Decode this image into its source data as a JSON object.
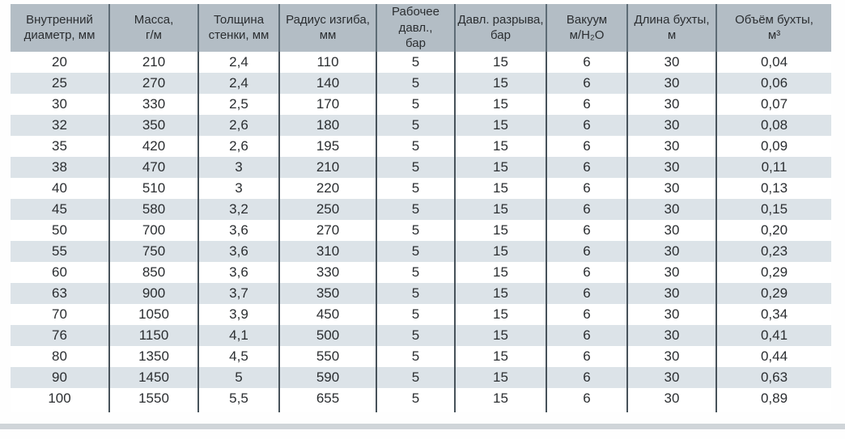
{
  "table_title": "pipe-coil-specifications",
  "chart_data": {
    "type": "table",
    "columns": [
      "Внутренний\nдиаметр, мм",
      "Масса,\nг/м",
      "Толщина\nстенки, мм",
      "Радиус изгиба,\nмм",
      "Рабочее давл.,\nбар",
      "Давл. разрыва,\nбар",
      "Вакуум\nм/H₂O",
      "Длина бухты,\nм",
      "Объём бухты,\nм³"
    ],
    "rows": [
      [
        "20",
        "210",
        "2,4",
        "110",
        "5",
        "15",
        "6",
        "30",
        "0,04"
      ],
      [
        "25",
        "270",
        "2,4",
        "140",
        "5",
        "15",
        "6",
        "30",
        "0,06"
      ],
      [
        "30",
        "330",
        "2,5",
        "170",
        "5",
        "15",
        "6",
        "30",
        "0,07"
      ],
      [
        "32",
        "350",
        "2,6",
        "180",
        "5",
        "15",
        "6",
        "30",
        "0,08"
      ],
      [
        "35",
        "420",
        "2,6",
        "195",
        "5",
        "15",
        "6",
        "30",
        "0,09"
      ],
      [
        "38",
        "470",
        "3",
        "210",
        "5",
        "15",
        "6",
        "30",
        "0,11"
      ],
      [
        "40",
        "510",
        "3",
        "220",
        "5",
        "15",
        "6",
        "30",
        "0,13"
      ],
      [
        "45",
        "580",
        "3,2",
        "250",
        "5",
        "15",
        "6",
        "30",
        "0,15"
      ],
      [
        "50",
        "700",
        "3,6",
        "270",
        "5",
        "15",
        "6",
        "30",
        "0,20"
      ],
      [
        "55",
        "750",
        "3,6",
        "310",
        "5",
        "15",
        "6",
        "30",
        "0,23"
      ],
      [
        "60",
        "850",
        "3,6",
        "330",
        "5",
        "15",
        "6",
        "30",
        "0,29"
      ],
      [
        "63",
        "900",
        "3,7",
        "350",
        "5",
        "15",
        "6",
        "30",
        "0,29"
      ],
      [
        "70",
        "1050",
        "3,9",
        "450",
        "5",
        "15",
        "6",
        "30",
        "0,34"
      ],
      [
        "76",
        "1150",
        "4,1",
        "500",
        "5",
        "15",
        "6",
        "30",
        "0,41"
      ],
      [
        "80",
        "1350",
        "4,5",
        "550",
        "5",
        "15",
        "6",
        "30",
        "0,44"
      ],
      [
        "90",
        "1450",
        "5",
        "590",
        "5",
        "15",
        "6",
        "30",
        "0,63"
      ],
      [
        "100",
        "1550",
        "5,5",
        "655",
        "5",
        "15",
        "6",
        "30",
        "0,89"
      ]
    ]
  },
  "colors": {
    "header_bg": "#b3bdc5",
    "header_divider": "#5e6c76",
    "stripe_row_bg": "#dce3e8",
    "white_row_bg": "#ffffff",
    "grid_line": "#47525a",
    "text": "#2b2e31",
    "bottom_strip": "#d0d5d9"
  }
}
